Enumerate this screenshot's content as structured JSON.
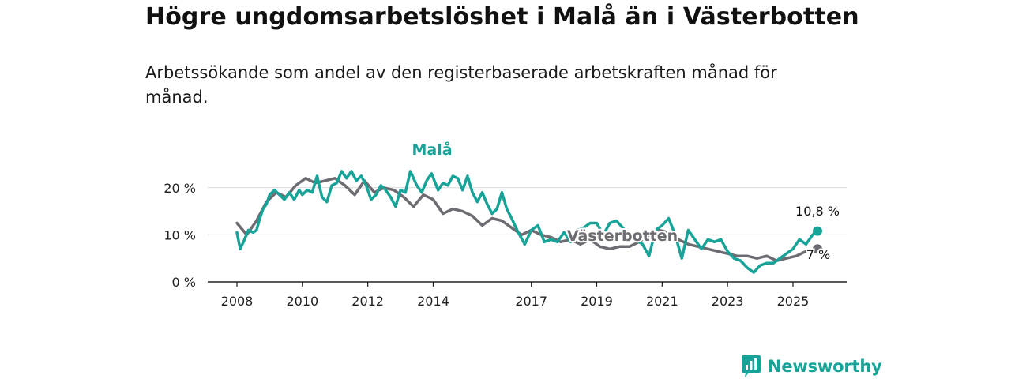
{
  "title": "Högre ungdomsarbetslöshet i Malå än i Västerbotten",
  "subtitle": "Arbetssökande som andel av den registerbaserade arbetskraften månad för månad.",
  "brand": {
    "name": "Newsworthy",
    "icon": "bar-chart-logo-icon",
    "color": "#17a398"
  },
  "chart_data": {
    "type": "line",
    "xlim": [
      2008,
      2026.3
    ],
    "ylim": [
      0,
      26
    ],
    "yticks": [
      0,
      10,
      20
    ],
    "ytick_labels": [
      "0 %",
      "10 %",
      "20 %"
    ],
    "xticks": [
      2008,
      2010,
      2012,
      2014,
      2017,
      2019,
      2021,
      2023,
      2025
    ],
    "xtick_labels": [
      "2008",
      "2010",
      "2012",
      "2014",
      "2017",
      "2019",
      "2021",
      "2023",
      "2025"
    ],
    "grid": true,
    "series": [
      {
        "name": "Malå",
        "label": "Malå",
        "color": "#17a398",
        "end_label": "10,8 %",
        "x": [
          2008.0,
          2008.1,
          2008.2,
          2008.35,
          2008.5,
          2008.6,
          2008.7,
          2008.8,
          2008.9,
          2009.0,
          2009.15,
          2009.3,
          2009.45,
          2009.6,
          2009.75,
          2009.9,
          2010.0,
          2010.15,
          2010.3,
          2010.45,
          2010.6,
          2010.75,
          2010.9,
          2011.05,
          2011.2,
          2011.35,
          2011.5,
          2011.65,
          2011.8,
          2011.95,
          2012.1,
          2012.25,
          2012.4,
          2012.55,
          2012.7,
          2012.85,
          2013.0,
          2013.15,
          2013.3,
          2013.5,
          2013.65,
          2013.8,
          2013.95,
          2014.15,
          2014.3,
          2014.45,
          2014.6,
          2014.75,
          2014.9,
          2015.05,
          2015.2,
          2015.35,
          2015.5,
          2015.65,
          2015.8,
          2015.95,
          2016.1,
          2016.25,
          2016.4,
          2016.6,
          2016.8,
          2017.0,
          2017.2,
          2017.4,
          2017.6,
          2017.8,
          2018.0,
          2018.2,
          2018.4,
          2018.6,
          2018.8,
          2019.0,
          2019.2,
          2019.4,
          2019.6,
          2019.8,
          2020.0,
          2020.2,
          2020.4,
          2020.6,
          2020.8,
          2021.0,
          2021.2,
          2021.4,
          2021.6,
          2021.8,
          2022.0,
          2022.2,
          2022.4,
          2022.6,
          2022.8,
          2023.0,
          2023.2,
          2023.4,
          2023.6,
          2023.8,
          2024.0,
          2024.2,
          2024.4,
          2024.6,
          2024.8,
          2025.0,
          2025.2,
          2025.4,
          2025.6,
          2025.75
        ],
        "values": [
          10.5,
          7,
          8.5,
          11,
          10.5,
          11,
          13.5,
          15.5,
          16.5,
          18.5,
          19.5,
          18.5,
          17.5,
          19,
          17.5,
          19.5,
          18.5,
          19.5,
          19,
          22.5,
          18,
          17,
          20.5,
          21,
          23.5,
          22,
          23.5,
          21.5,
          22.5,
          20.5,
          17.5,
          18.5,
          20.5,
          19.5,
          18,
          16,
          19.5,
          19,
          23.5,
          20.5,
          19,
          21.5,
          23,
          19.5,
          21,
          20.5,
          22.5,
          22,
          19.5,
          22.5,
          19,
          17,
          19,
          16.5,
          14.5,
          15.5,
          19,
          15.5,
          13.5,
          10.5,
          8,
          11,
          12,
          8.5,
          9,
          8.5,
          10.5,
          8.5,
          11,
          11.5,
          12.5,
          12.5,
          10,
          12.5,
          13,
          11.5,
          9.5,
          9,
          8,
          5.5,
          11,
          12,
          13.5,
          10,
          5,
          11,
          9,
          7,
          9,
          8.5,
          9,
          6.5,
          5,
          4.5,
          3,
          2,
          3.5,
          4,
          4,
          5,
          6,
          7,
          9,
          8,
          10,
          10.8
        ]
      },
      {
        "name": "Västerbotten",
        "label": "Västerbotten",
        "color": "#6e6b72",
        "end_label": "7 %",
        "x": [
          2008.0,
          2008.3,
          2008.6,
          2008.9,
          2009.2,
          2009.5,
          2009.8,
          2010.1,
          2010.4,
          2010.7,
          2011.0,
          2011.3,
          2011.6,
          2011.9,
          2012.2,
          2012.5,
          2012.8,
          2013.1,
          2013.4,
          2013.7,
          2014.0,
          2014.3,
          2014.6,
          2014.9,
          2015.2,
          2015.5,
          2015.8,
          2016.1,
          2016.4,
          2016.7,
          2017.0,
          2017.3,
          2017.6,
          2017.9,
          2018.2,
          2018.5,
          2018.8,
          2019.1,
          2019.4,
          2019.7,
          2020.0,
          2020.3,
          2020.6,
          2020.9,
          2021.2,
          2021.5,
          2021.8,
          2022.1,
          2022.4,
          2022.7,
          2023.0,
          2023.3,
          2023.6,
          2023.9,
          2024.2,
          2024.5,
          2024.8,
          2025.1,
          2025.4,
          2025.75
        ],
        "values": [
          12.5,
          10,
          13,
          17,
          19,
          18,
          20.5,
          22,
          21,
          21.5,
          22,
          20.5,
          18.5,
          21.5,
          19,
          20,
          19.5,
          18,
          16,
          18.5,
          17.5,
          14.5,
          15.5,
          15,
          14,
          12,
          13.5,
          13,
          11.5,
          10,
          11,
          10,
          9.5,
          8.5,
          9,
          8,
          9,
          7.5,
          7,
          7.5,
          7.5,
          8.5,
          10,
          11,
          10.5,
          9,
          8,
          7.5,
          7,
          6.5,
          6,
          5.5,
          5.5,
          5,
          5.5,
          4.5,
          5,
          5.5,
          6.5,
          7
        ]
      }
    ]
  }
}
